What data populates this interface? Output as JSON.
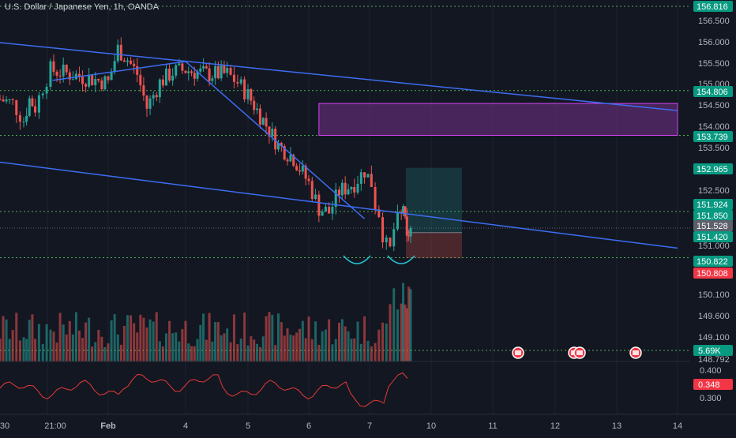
{
  "header": {
    "title": "U.S. Dollar / Japanese Yen, 1h, OANDA"
  },
  "colors": {
    "background": "#131722",
    "bull": "#26a69a",
    "bear": "#ef5350",
    "trendline": "#3d6df2",
    "level": "#4caf50",
    "zone_fill": "#5b2c6f",
    "zone_stroke": "#d642f2",
    "rsi": "#e53935"
  },
  "axes": {
    "x_ticks": [
      "30",
      "21:00",
      "Feb",
      "4",
      "5",
      "6",
      "7",
      "10",
      "11",
      "12",
      "13",
      "14"
    ],
    "price_ticks": [
      "156.500",
      "156.000",
      "155.500",
      "155.000",
      "154.500",
      "154.000",
      "153.500",
      "152.500",
      "151.000",
      "150.100",
      "149.600",
      "149.100",
      "148.792"
    ],
    "rsi_ticks": [
      "0.400",
      "0.300"
    ]
  },
  "price_badges": [
    {
      "label": "156.816",
      "value": 156.816,
      "kind": "level"
    },
    {
      "label": "154.806",
      "value": 154.806,
      "kind": "level"
    },
    {
      "label": "153.739",
      "value": 153.739,
      "kind": "level"
    },
    {
      "label": "152.965",
      "value": 152.965,
      "kind": "target"
    },
    {
      "label": "151.924",
      "value": 151.924,
      "kind": "level"
    },
    {
      "label": "151.850",
      "value": 151.85,
      "kind": "level"
    },
    {
      "label": "151.528",
      "value": 151.528,
      "kind": "price"
    },
    {
      "label": "151.420",
      "value": 151.42,
      "kind": "entry"
    },
    {
      "label": "150.822",
      "value": 150.822,
      "kind": "level"
    },
    {
      "label": "150.808",
      "value": 150.808,
      "kind": "stop"
    }
  ],
  "volume_badge": "5.69K",
  "rsi_badge": "0.348",
  "chart_data": {
    "type": "candlestick",
    "symbol": "U.S. Dollar / Japanese Yen",
    "interval": "1h",
    "source": "OANDA",
    "y_range": [
      148.6,
      156.95
    ],
    "horizontal_levels": [
      156.816,
      154.806,
      153.739,
      151.924,
      150.822,
      148.792
    ],
    "zone": {
      "from": 153.739,
      "to": 154.5,
      "start": "Feb 6 04:00",
      "end": "Feb 14 00:00"
    },
    "position": {
      "entry": 151.42,
      "target": 152.965,
      "stop": 150.808
    },
    "trendlines": [
      {
        "from": [
          "Jan 29 23:00",
          155.95
        ],
        "to": [
          "Feb 14 00:00",
          154.33
        ]
      },
      {
        "from": [
          "Jan 29 23:00",
          153.1
        ],
        "to": [
          "Feb 14 00:00",
          151.05
        ]
      },
      {
        "from": [
          "Jan 31 18:00",
          155.05
        ],
        "to": [
          "Feb 4 00:00",
          155.5
        ]
      },
      {
        "from": [
          "Feb 4 00:00",
          155.5
        ],
        "to": [
          "Feb 6 22:00",
          151.75
        ]
      }
    ],
    "close_path": [
      [
        "Jan 29 23:00",
        154.6
      ],
      [
        "Jan 30 06:00",
        154.5
      ],
      [
        "Jan 30 12:00",
        154.1
      ],
      [
        "Jan 30 18:00",
        154.6
      ],
      [
        "Jan 31 00:00",
        154.4
      ],
      [
        "Jan 31 08:00",
        154.9
      ],
      [
        "Jan 31 16:00",
        155.3
      ],
      [
        "Feb 2 00:00",
        155.0
      ],
      [
        "Feb 2 06:00",
        155.8
      ],
      [
        "Feb 2 12:00",
        155.55
      ],
      [
        "Feb 2 18:00",
        155.2
      ],
      [
        "Feb 3 00:00",
        154.4
      ],
      [
        "Feb 3 08:00",
        155.0
      ],
      [
        "Feb 3 16:00",
        155.25
      ],
      [
        "Feb 4 00:00",
        155.3
      ],
      [
        "Feb 4 08:00",
        155.2
      ],
      [
        "Feb 4 16:00",
        155.2
      ],
      [
        "Feb 4 20:00",
        155.0
      ],
      [
        "Feb 5 00:00",
        154.7
      ],
      [
        "Feb 5 06:00",
        154.1
      ],
      [
        "Feb 5 12:00",
        153.5
      ],
      [
        "Feb 5 18:00",
        153.2
      ],
      [
        "Feb 6 00:00",
        152.6
      ],
      [
        "Feb 6 04:00",
        152.0
      ],
      [
        "Feb 6 08:00",
        151.9
      ],
      [
        "Feb 6 12:00",
        152.4
      ],
      [
        "Feb 6 18:00",
        152.6
      ],
      [
        "Feb 6 22:00",
        152.9
      ],
      [
        "Feb 7 02:00",
        152.6
      ],
      [
        "Feb 7 06:00",
        152.1
      ],
      [
        "Feb 7 10:00",
        151.9
      ],
      [
        "Feb 7 14:00",
        151.4
      ],
      [
        "Feb 7 18:00",
        151.1
      ],
      [
        "Feb 7 22:00",
        151.0
      ],
      [
        "Feb 8 02:00",
        151.5
      ],
      [
        "Feb 8 06:00",
        151.7
      ],
      [
        "Feb 8 10:00",
        151.8
      ],
      [
        "Feb 8 12:00",
        152.1
      ],
      [
        "Feb 8 14:00",
        151.6
      ],
      [
        "Feb 8 16:00",
        151.2
      ],
      [
        "Feb 8 18:00",
        151.4
      ],
      [
        "Feb 8 20:00",
        151.5
      ]
    ]
  }
}
